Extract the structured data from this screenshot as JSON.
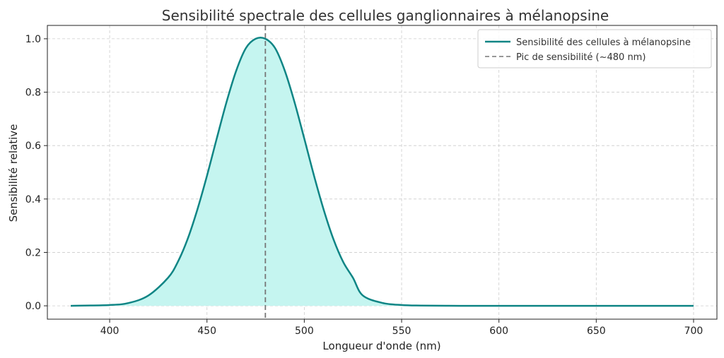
{
  "chart_data": {
    "type": "line",
    "title": "Sensibilité spectrale des cellules ganglionnaires à mélanopsine",
    "xlabel": "Longueur d'onde (nm)",
    "ylabel": "Sensibilité relative",
    "xlim": [
      368,
      712
    ],
    "ylim": [
      -0.05,
      1.05
    ],
    "xticks": [
      400,
      450,
      500,
      550,
      600,
      650,
      700
    ],
    "yticks": [
      0.0,
      0.2,
      0.4,
      0.6,
      0.8,
      1.0
    ],
    "ytick_labels": [
      "0.0",
      "0.2",
      "0.4",
      "0.6",
      "0.8",
      "1.0"
    ],
    "grid": true,
    "legend_position": "top-right",
    "series": [
      {
        "name": "Sensibilité des cellules à mélanopsine",
        "color": "#0f8585",
        "fill_color": "#c5f5f0",
        "x": [
          380,
          400,
          410,
          420,
          430,
          435,
          440,
          445,
          450,
          455,
          460,
          465,
          470,
          475,
          480,
          485,
          490,
          495,
          500,
          505,
          510,
          515,
          520,
          525,
          530,
          540,
          550,
          560,
          580,
          600,
          650,
          700
        ],
        "y": [
          0.0,
          0.003,
          0.011,
          0.039,
          0.105,
          0.164,
          0.249,
          0.359,
          0.487,
          0.626,
          0.762,
          0.88,
          0.965,
          1.0,
          1.0,
          0.965,
          0.88,
          0.762,
          0.626,
          0.487,
          0.359,
          0.249,
          0.164,
          0.105,
          0.039,
          0.011,
          0.003,
          0.001,
          0.0,
          0.0,
          0.0,
          0.0
        ]
      }
    ],
    "reference_line": {
      "name": "Pic de sensibilité (~480 nm)",
      "x": 480,
      "color": "#777777",
      "style": "dashed"
    }
  }
}
